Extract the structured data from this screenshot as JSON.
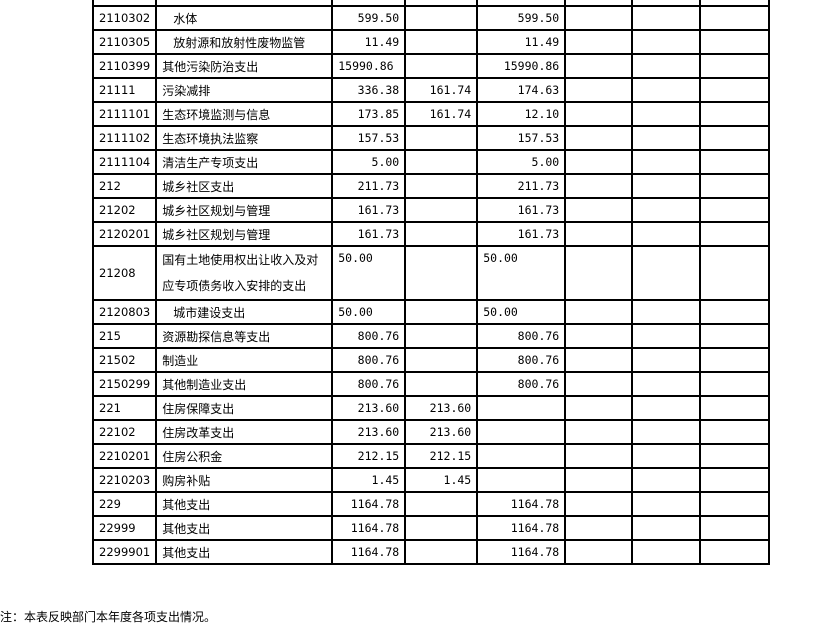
{
  "rows": [
    {
      "code": "2110302",
      "name": "水体",
      "indent": true,
      "c3": "599.50",
      "c4": "",
      "c5": "599.50"
    },
    {
      "code": "2110305",
      "name": "放射源和放射性废物监管",
      "indent": true,
      "c3": "11.49",
      "c4": "",
      "c5": "11.49"
    },
    {
      "code": "2110399",
      "name": "其他污染防治支出",
      "c3": "15990.86",
      "c3left": true,
      "c4": "",
      "c5": "15990.86"
    },
    {
      "code": "21111",
      "name": "污染减排",
      "c3": "336.38",
      "c4": "161.74",
      "c5": "174.63"
    },
    {
      "code": "2111101",
      "name": "生态环境监测与信息",
      "c3": "173.85",
      "c4": "161.74",
      "c5": "12.10"
    },
    {
      "code": "2111102",
      "name": "生态环境执法监察",
      "c3": "157.53",
      "c4": "",
      "c5": "157.53"
    },
    {
      "code": "2111104",
      "name": "清洁生产专项支出",
      "c3": "5.00",
      "c4": "",
      "c5": "5.00"
    },
    {
      "code": "212",
      "name": "城乡社区支出",
      "c3": "211.73",
      "c4": "",
      "c5": "211.73"
    },
    {
      "code": "21202",
      "name": "城乡社区规划与管理",
      "c3": "161.73",
      "c4": "",
      "c5": "161.73"
    },
    {
      "code": "2120201",
      "name": "城乡社区规划与管理",
      "c3": "161.73",
      "c4": "",
      "c5": "161.73"
    },
    {
      "code": "21208",
      "name": "国有土地使用权出让收入及对应专项债务收入安排的支出",
      "tall": true,
      "c3": "50.00",
      "c3left": true,
      "c4": "",
      "c5": "50.00",
      "c5left": true
    },
    {
      "code": "2120803",
      "name": "城市建设支出",
      "indent": true,
      "c3": "50.00",
      "c3left": true,
      "c4": "",
      "c5": "50.00",
      "c5left": true
    },
    {
      "code": "215",
      "name": "资源勘探信息等支出",
      "c3": "800.76",
      "c4": "",
      "c5": "800.76"
    },
    {
      "code": "21502",
      "name": "制造业",
      "c3": "800.76",
      "c4": "",
      "c5": "800.76"
    },
    {
      "code": "2150299",
      "name": "其他制造业支出",
      "c3": "800.76",
      "c4": "",
      "c5": "800.76"
    },
    {
      "code": "221",
      "name": "住房保障支出",
      "c3": "213.60",
      "c4": "213.60",
      "c5": ""
    },
    {
      "code": "22102",
      "name": "住房改革支出",
      "c3": "213.60",
      "c4": "213.60",
      "c5": ""
    },
    {
      "code": "2210201",
      "name": "住房公积金",
      "c3": "212.15",
      "c4": "212.15",
      "c5": ""
    },
    {
      "code": "2210203",
      "name": "购房补贴",
      "c3": "1.45",
      "c4": "1.45",
      "c5": ""
    },
    {
      "code": "229",
      "name": "其他支出",
      "c3": "1164.78",
      "c4": "",
      "c5": "1164.78"
    },
    {
      "code": "22999",
      "name": "其他支出",
      "c3": "1164.78",
      "c4": "",
      "c5": "1164.78"
    },
    {
      "code": "2299901",
      "name": "其他支出",
      "c3": "1164.78",
      "c4": "",
      "c5": "1164.78"
    }
  ],
  "note": "注：本表反映部门本年度各项支出情况。"
}
